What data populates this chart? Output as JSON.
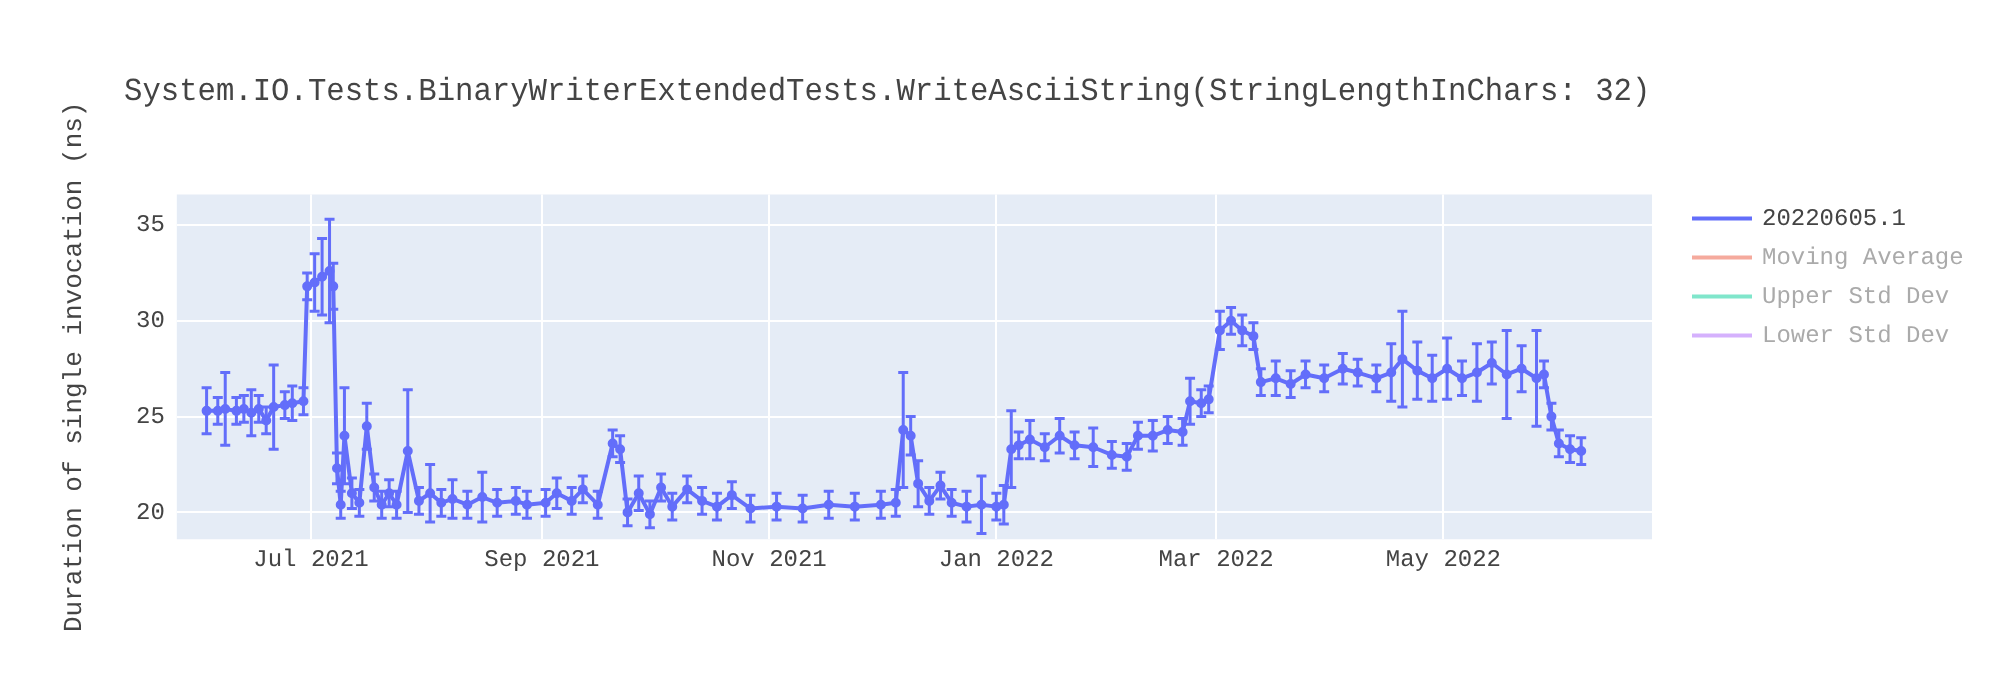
{
  "chart_data": {
    "type": "line",
    "title": "System.IO.Tests.BinaryWriterExtendedTests.WriteAsciiString(StringLengthInChars: 32)",
    "ylabel": "Duration of single invocation (ns)",
    "x": [
      "2021-06-03",
      "2021-06-06",
      "2021-06-08",
      "2021-06-11",
      "2021-06-13",
      "2021-06-15",
      "2021-06-17",
      "2021-06-19",
      "2021-06-21",
      "2021-06-24",
      "2021-06-26",
      "2021-06-29",
      "2021-06-30",
      "2021-07-02",
      "2021-07-04",
      "2021-07-06",
      "2021-07-07",
      "2021-07-08",
      "2021-07-09",
      "2021-07-10",
      "2021-07-12",
      "2021-07-14",
      "2021-07-16",
      "2021-07-18",
      "2021-07-20",
      "2021-07-22",
      "2021-07-24",
      "2021-07-27",
      "2021-07-30",
      "2021-08-02",
      "2021-08-05",
      "2021-08-08",
      "2021-08-12",
      "2021-08-16",
      "2021-08-20",
      "2021-08-25",
      "2021-08-28",
      "2021-09-02",
      "2021-09-05",
      "2021-09-09",
      "2021-09-12",
      "2021-09-16",
      "2021-09-20",
      "2021-09-22",
      "2021-09-24",
      "2021-09-27",
      "2021-09-30",
      "2021-10-03",
      "2021-10-06",
      "2021-10-10",
      "2021-10-14",
      "2021-10-18",
      "2021-10-22",
      "2021-10-27",
      "2021-11-03",
      "2021-11-10",
      "2021-11-17",
      "2021-11-24",
      "2021-12-01",
      "2021-12-05",
      "2021-12-07",
      "2021-12-09",
      "2021-12-11",
      "2021-12-14",
      "2021-12-17",
      "2021-12-20",
      "2021-12-24",
      "2021-12-28",
      "2022-01-01",
      "2022-01-03",
      "2022-01-05",
      "2022-01-07",
      "2022-01-10",
      "2022-01-14",
      "2022-01-18",
      "2022-01-22",
      "2022-01-27",
      "2022-02-01",
      "2022-02-05",
      "2022-02-08",
      "2022-02-12",
      "2022-02-16",
      "2022-02-20",
      "2022-02-22",
      "2022-02-25",
      "2022-02-27",
      "2022-03-02",
      "2022-03-05",
      "2022-03-08",
      "2022-03-11",
      "2022-03-13",
      "2022-03-17",
      "2022-03-21",
      "2022-03-25",
      "2022-03-30",
      "2022-04-04",
      "2022-04-08",
      "2022-04-13",
      "2022-04-17",
      "2022-04-20",
      "2022-04-24",
      "2022-04-28",
      "2022-05-02",
      "2022-05-06",
      "2022-05-10",
      "2022-05-14",
      "2022-05-18",
      "2022-05-22",
      "2022-05-26",
      "2022-05-28",
      "2022-05-30",
      "2022-06-01",
      "2022-06-04",
      "2022-06-07"
    ],
    "series": [
      {
        "name": "20220605.1",
        "color": "#636efa",
        "values": [
          25.3,
          25.3,
          25.4,
          25.3,
          25.4,
          25.2,
          25.4,
          24.8,
          25.5,
          25.6,
          25.7,
          25.8,
          31.8,
          32.0,
          32.3,
          32.6,
          31.8,
          22.3,
          20.4,
          24.0,
          21.0,
          20.5,
          24.5,
          21.3,
          20.4,
          21.0,
          20.4,
          23.2,
          20.6,
          21.0,
          20.5,
          20.7,
          20.4,
          20.8,
          20.5,
          20.6,
          20.4,
          20.5,
          21.0,
          20.6,
          21.2,
          20.4,
          23.6,
          23.3,
          20.0,
          21.0,
          19.9,
          21.3,
          20.3,
          21.2,
          20.6,
          20.3,
          20.9,
          20.2,
          20.3,
          20.2,
          20.4,
          20.3,
          20.4,
          20.5,
          24.3,
          24.0,
          21.5,
          20.6,
          21.4,
          20.5,
          20.3,
          20.4,
          20.3,
          20.4,
          23.3,
          23.5,
          23.8,
          23.4,
          24.0,
          23.5,
          23.4,
          23.0,
          22.9,
          24.0,
          24.0,
          24.3,
          24.2,
          25.8,
          25.7,
          25.9,
          29.5,
          30.0,
          29.5,
          29.2,
          26.8,
          27.0,
          26.7,
          27.2,
          27.0,
          27.5,
          27.3,
          27.0,
          27.3,
          28.0,
          27.4,
          27.0,
          27.5,
          27.0,
          27.3,
          27.8,
          27.2,
          27.5,
          27.0,
          27.2,
          25.0,
          23.6,
          23.3,
          23.2
        ],
        "errors": [
          1.2,
          0.7,
          1.9,
          0.7,
          0.7,
          1.2,
          0.7,
          0.7,
          2.2,
          0.7,
          0.9,
          0.7,
          0.7,
          1.5,
          2.0,
          2.7,
          1.2,
          0.8,
          0.7,
          2.5,
          0.8,
          0.7,
          1.2,
          0.7,
          0.7,
          0.7,
          0.7,
          3.2,
          0.7,
          1.5,
          0.7,
          1.0,
          0.7,
          1.3,
          0.7,
          0.7,
          0.7,
          0.7,
          0.8,
          0.7,
          0.7,
          0.7,
          0.7,
          0.7,
          0.7,
          0.9,
          0.7,
          0.7,
          0.7,
          0.7,
          0.7,
          0.7,
          0.7,
          0.7,
          0.7,
          0.7,
          0.7,
          0.7,
          0.7,
          0.7,
          3.0,
          1.0,
          1.2,
          0.7,
          0.7,
          0.7,
          0.8,
          1.5,
          0.7,
          1.0,
          2.0,
          0.7,
          1.0,
          0.7,
          0.9,
          0.7,
          1.0,
          0.7,
          0.7,
          0.7,
          0.8,
          0.7,
          0.7,
          1.2,
          0.7,
          0.7,
          1.0,
          0.7,
          0.8,
          0.7,
          0.7,
          0.9,
          0.7,
          0.7,
          0.7,
          0.8,
          0.7,
          0.7,
          1.5,
          2.5,
          1.5,
          1.2,
          1.6,
          0.9,
          1.5,
          1.1,
          2.3,
          1.2,
          2.5,
          0.7,
          0.7,
          0.7,
          0.7,
          0.7
        ]
      },
      {
        "name": "Moving Average",
        "color": "#f5aa9d",
        "values": [
          null,
          null,
          null,
          null,
          null,
          null,
          null,
          null,
          null,
          null,
          null,
          null,
          null,
          null,
          null,
          null,
          null,
          null,
          null,
          null,
          null,
          null,
          null,
          null,
          null,
          null,
          null,
          null,
          null,
          null,
          null,
          null,
          null,
          null,
          null,
          null,
          null,
          null,
          null,
          null,
          null,
          null,
          null,
          null,
          null,
          null,
          null,
          null,
          null,
          null,
          null,
          null,
          null,
          null,
          null,
          null,
          null,
          null,
          null,
          null,
          null,
          null,
          null,
          null,
          null,
          null,
          null,
          null,
          null,
          null,
          null,
          null,
          null,
          null,
          null,
          null,
          null,
          null,
          null,
          null,
          null,
          null,
          null,
          null,
          null,
          null,
          null,
          null,
          null,
          null,
          null,
          null,
          null,
          null,
          null,
          null,
          null,
          null,
          null,
          null,
          null,
          null,
          null,
          null,
          null,
          null,
          null,
          null,
          null,
          null,
          null,
          null,
          null,
          null
        ]
      },
      {
        "name": "Upper Std Dev",
        "color": "#80e6cb",
        "values": [
          null,
          null,
          null,
          null,
          null,
          null,
          null,
          null,
          null,
          null,
          null,
          null,
          null,
          null,
          null,
          null,
          null,
          null,
          null,
          null,
          null,
          null,
          null,
          null,
          null,
          null,
          null,
          null,
          null,
          null,
          null,
          null,
          null,
          null,
          null,
          null,
          null,
          null,
          null,
          null,
          null,
          null,
          null,
          null,
          null,
          null,
          null,
          null,
          null,
          null,
          null,
          null,
          null,
          null,
          null,
          null,
          null,
          null,
          null,
          null,
          null,
          null,
          null,
          null,
          null,
          null,
          null,
          null,
          null,
          null,
          null,
          null,
          null,
          null,
          null,
          null,
          null,
          null,
          null,
          null,
          null,
          null,
          null,
          null,
          null,
          null,
          null,
          null,
          null,
          null,
          null,
          null,
          null,
          null,
          null,
          null,
          null,
          null,
          null,
          null,
          null,
          null,
          null,
          null,
          null,
          null,
          null,
          null,
          null,
          null,
          null,
          null,
          null,
          null
        ]
      },
      {
        "name": "Lower Std Dev",
        "color": "#d5b1fd",
        "values": [
          null,
          null,
          null,
          null,
          null,
          null,
          null,
          null,
          null,
          null,
          null,
          null,
          null,
          null,
          null,
          null,
          null,
          null,
          null,
          null,
          null,
          null,
          null,
          null,
          null,
          null,
          null,
          null,
          null,
          null,
          null,
          null,
          null,
          null,
          null,
          null,
          null,
          null,
          null,
          null,
          null,
          null,
          null,
          null,
          null,
          null,
          null,
          null,
          null,
          null,
          null,
          null,
          null,
          null,
          null,
          null,
          null,
          null,
          null,
          null,
          null,
          null,
          null,
          null,
          null,
          null,
          null,
          null,
          null,
          null,
          null,
          null,
          null,
          null,
          null,
          null,
          null,
          null,
          null,
          null,
          null,
          null,
          null,
          null,
          null,
          null,
          null,
          null,
          null,
          null,
          null,
          null,
          null,
          null,
          null,
          null,
          null,
          null,
          null,
          null,
          null,
          null,
          null,
          null,
          null,
          null,
          null,
          null,
          null,
          null,
          null,
          null,
          null,
          null
        ]
      }
    ],
    "xlim": [
      "2021-05-26",
      "2022-06-26"
    ],
    "xticks": [
      {
        "value": "2021-07-01",
        "label": "Jul 2021"
      },
      {
        "value": "2021-09-01",
        "label": "Sep 2021"
      },
      {
        "value": "2021-11-01",
        "label": "Nov 2021"
      },
      {
        "value": "2022-01-01",
        "label": "Jan 2022"
      },
      {
        "value": "2022-03-01",
        "label": "Mar 2022"
      },
      {
        "value": "2022-05-01",
        "label": "May 2022"
      }
    ],
    "ylim": [
      18.6,
      36.6
    ],
    "yticks": [
      20,
      25,
      30,
      35
    ],
    "grid": true,
    "legend": "top right",
    "marker": "circle",
    "line_style": "solid"
  }
}
